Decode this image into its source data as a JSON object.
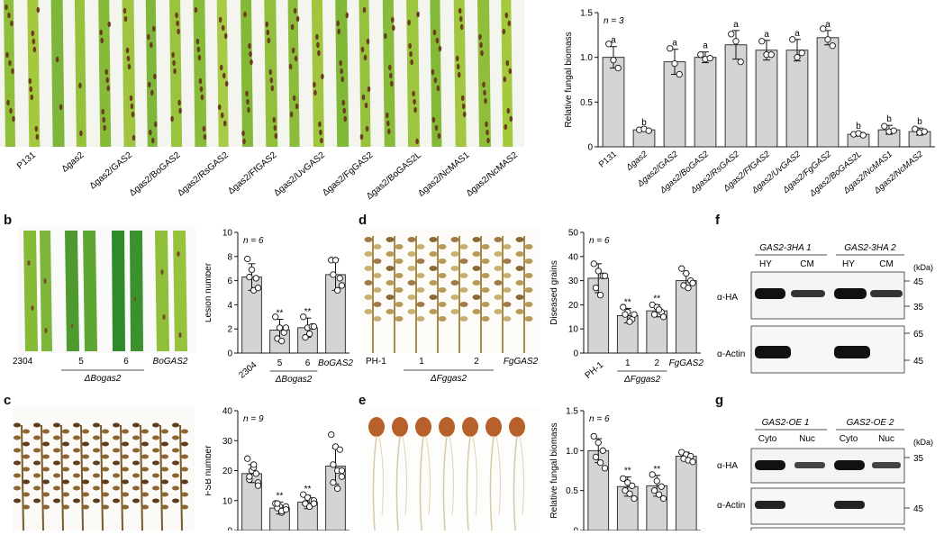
{
  "panels": {
    "b": "b",
    "c": "c",
    "d": "d",
    "e": "e",
    "f": "f",
    "g": "g"
  },
  "leaf_colors": [
    "#8fbf3a",
    "#a4c93c",
    "#7db63a",
    "#95c23c",
    "#86bb38",
    "#9fc540",
    "#7fb73a",
    "#9bc43e",
    "#89bc3a",
    "#a8ca44",
    "#84b938",
    "#92c03c",
    "#8cbd3a",
    "#a0c63f",
    "#80b838",
    "#96c23d",
    "#87bb39",
    "#9dc53f",
    "#83b937",
    "#a2c741"
  ],
  "panel_a_photo_labels": [
    "P131",
    "Δgas2",
    "Δgas2/GAS2",
    "Δgas2/BoGAS2",
    "Δgas2/RsGAS2",
    "Δgas2/FfGAS2",
    "Δgas2/UvGAS2",
    "Δgas2/FgGAS2",
    "Δgas2/BoGAS2L",
    "Δgas2/NcMAS1",
    "Δgas2/NcMAS2"
  ],
  "panel_b_photo": {
    "labels": [
      "2304",
      "5",
      "6",
      "BoGAS2"
    ],
    "group": "ΔBogas2"
  },
  "panel_d_photo": {
    "labels": [
      "PH-1",
      "1",
      "2",
      "FgGAS2"
    ],
    "group": "ΔFggas2"
  },
  "chart_data": [
    {
      "id": "a",
      "type": "bar",
      "ylabel": "Relative fungal biomass",
      "ylim": [
        0,
        1.5
      ],
      "yticks": [
        "0",
        "0.5",
        "1.0",
        "1.5"
      ],
      "n_label": "n = 3",
      "categories": [
        "P131",
        "Δgas2",
        "Δgas2/GAS2",
        "Δgas2/BoGAS2",
        "Δgas2/RsGAS2",
        "Δgas2/FfGAS2",
        "Δgas2/UvGAS2",
        "Δgas2/FgGAS2",
        "Δgas2/BoGAS2L",
        "Δgas2/NcMAS1",
        "Δgas2/NcMAS2"
      ],
      "values": [
        1.0,
        0.19,
        0.95,
        1.0,
        1.14,
        1.08,
        1.08,
        1.22,
        0.14,
        0.19,
        0.17
      ],
      "errors": [
        0.12,
        0.01,
        0.14,
        0.06,
        0.16,
        0.11,
        0.12,
        0.08,
        0.02,
        0.05,
        0.04
      ],
      "points": [
        [
          1.15,
          0.97,
          0.88
        ],
        [
          0.19,
          0.2,
          0.18
        ],
        [
          1.1,
          0.93,
          0.81
        ],
        [
          1.03,
          0.98,
          0.99
        ],
        [
          1.26,
          1.18,
          0.95
        ],
        [
          1.18,
          1.03,
          1.03
        ],
        [
          1.2,
          1.0,
          1.05
        ],
        [
          1.32,
          1.2,
          1.13
        ],
        [
          0.14,
          0.15,
          0.13
        ],
        [
          0.23,
          0.17,
          0.18
        ],
        [
          0.2,
          0.16,
          0.17
        ]
      ],
      "sig": [
        "a",
        "b",
        "a",
        "a",
        "a",
        "a",
        "a",
        "a",
        "b",
        "b",
        "b"
      ]
    },
    {
      "id": "b",
      "type": "bar",
      "ylabel": "Lesion number",
      "ylim": [
        0,
        10
      ],
      "yticks": [
        "0",
        "2",
        "4",
        "6",
        "8",
        "10"
      ],
      "n_label": "n = 6",
      "categories": [
        "2304",
        "5",
        "6",
        "BoGAS2"
      ],
      "group": "ΔBogas2",
      "group_span": [
        1,
        2
      ],
      "values": [
        6.3,
        1.9,
        2.1,
        6.5
      ],
      "errors": [
        1.1,
        0.9,
        0.8,
        1.3
      ],
      "points": [
        [
          7.8,
          6.9,
          6.2,
          6.3,
          5.2,
          5.4
        ],
        [
          3.0,
          2.1,
          1.7,
          1.2,
          1.0,
          2.1
        ],
        [
          3.0,
          2.1,
          2.2,
          1.3,
          1.6,
          2.2
        ],
        [
          7.7,
          7.7,
          6.2,
          6.5,
          5.2,
          5.6
        ]
      ],
      "sig": [
        "",
        "**",
        "**",
        ""
      ]
    },
    {
      "id": "c",
      "type": "bar",
      "ylabel": "FSB number",
      "ylim": [
        0,
        40
      ],
      "yticks": [
        "0",
        "10",
        "20",
        "30",
        "40"
      ],
      "n_label": "n = 9",
      "categories": [
        "",
        "",
        "",
        ""
      ],
      "values": [
        19,
        7.5,
        9.5,
        21.5
      ],
      "errors": [
        3,
        2,
        2.2,
        6
      ],
      "points": [
        [
          24,
          20,
          19,
          17,
          21,
          16,
          18,
          22,
          15
        ],
        [
          9,
          8,
          7,
          7.5,
          6,
          8,
          9,
          6.5,
          7
        ],
        [
          12,
          11,
          10,
          9,
          8,
          10,
          9,
          8,
          9
        ],
        [
          32,
          28,
          27,
          22,
          20,
          20,
          16,
          14,
          18
        ]
      ],
      "sig": [
        "",
        "**",
        "**",
        ""
      ]
    },
    {
      "id": "d",
      "type": "bar",
      "ylabel": "Diseased grains",
      "ylim": [
        0,
        50
      ],
      "yticks": [
        "0",
        "10",
        "20",
        "30",
        "40",
        "50"
      ],
      "n_label": "n = 6",
      "categories": [
        "PH-1",
        "1",
        "2",
        "FgGAS2"
      ],
      "group": "ΔFggas2",
      "group_span": [
        1,
        2
      ],
      "values": [
        31,
        15.5,
        17.5,
        30
      ],
      "errors": [
        6,
        3,
        2.5,
        3
      ],
      "points": [
        [
          37,
          34,
          32,
          27,
          24,
          32
        ],
        [
          19,
          17,
          14,
          16,
          13,
          16
        ],
        [
          20,
          19,
          17,
          16,
          18,
          15
        ],
        [
          35,
          33,
          30,
          28,
          27,
          29
        ]
      ],
      "sig": [
        "",
        "**",
        "**",
        ""
      ]
    },
    {
      "id": "e",
      "type": "bar",
      "ylabel": "Relative fungal biomass",
      "ylim": [
        0,
        1.5
      ],
      "yticks": [
        "0",
        "0.5",
        "1.0",
        "1.5"
      ],
      "n_label": "n = 6",
      "categories": [
        "",
        "",
        "",
        ""
      ],
      "values": [
        1.0,
        0.55,
        0.56,
        0.93
      ],
      "errors": [
        0.15,
        0.12,
        0.13,
        0.05
      ],
      "points": [
        [
          1.18,
          1.1,
          1.0,
          0.92,
          0.85,
          0.78
        ],
        [
          0.65,
          0.6,
          0.56,
          0.5,
          0.46,
          0.4
        ],
        [
          0.7,
          0.62,
          0.55,
          0.5,
          0.45,
          0.4
        ],
        [
          0.98,
          0.95,
          0.93,
          0.9,
          0.88,
          0.86
        ]
      ],
      "sig": [
        "",
        "**",
        "**",
        ""
      ]
    }
  ],
  "blot_f": {
    "group1": "GAS2-3HA 1",
    "group2": "GAS2-3HA 2",
    "lanes": [
      "HY",
      "CM",
      "HY",
      "CM"
    ],
    "unit": "(kDa)",
    "row1": "α-HA",
    "row2": "α-Actin",
    "markers1": [
      "45",
      "35"
    ],
    "markers2": [
      "65",
      "45"
    ]
  },
  "blot_g": {
    "group1": "GAS2-OE 1",
    "group2": "GAS2-OE 2",
    "lanes": [
      "Cyto",
      "Nuc",
      "Cyto",
      "Nuc"
    ],
    "unit": "(kDa)",
    "row1": "α-HA",
    "row2": "α-Actin",
    "markers1": [
      "35"
    ],
    "markers2": [
      "45"
    ]
  }
}
